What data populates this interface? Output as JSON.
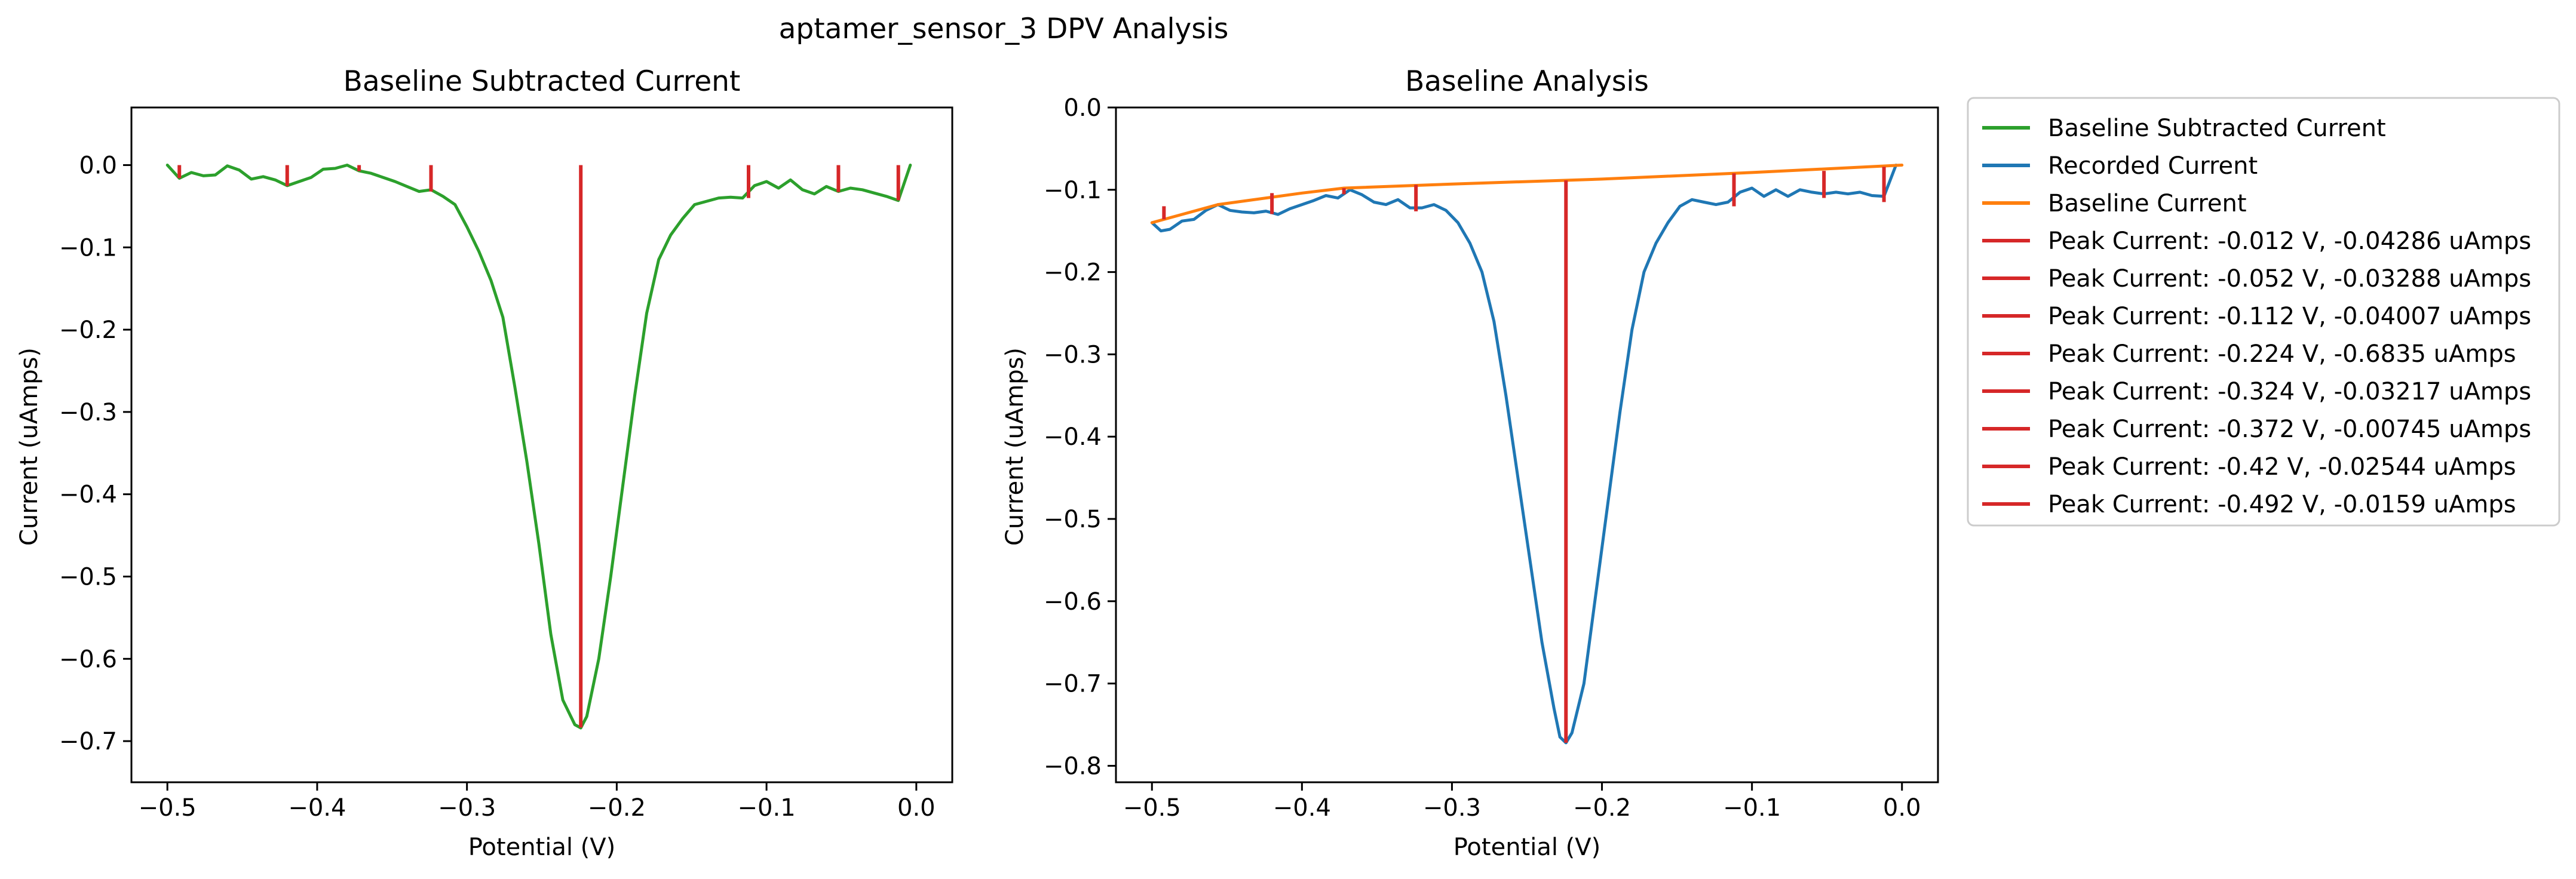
{
  "figure": {
    "title": "aptamer_sensor_3 DPV Analysis"
  },
  "chart_data": [
    {
      "type": "line",
      "title": "Baseline Subtracted Current",
      "xlabel": "Potential (V)",
      "ylabel": "Current (uAmps)",
      "xlim": [
        -0.524,
        0.024
      ],
      "ylim": [
        -0.75,
        0.07
      ],
      "xticks": [
        -0.5,
        -0.4,
        -0.3,
        -0.2,
        -0.1,
        0.0
      ],
      "xtick_labels": [
        "−0.5",
        "−0.4",
        "−0.3",
        "−0.2",
        "−0.1",
        "0.0"
      ],
      "yticks": [
        0.0,
        -0.1,
        -0.2,
        -0.3,
        -0.4,
        -0.5,
        -0.6,
        -0.7
      ],
      "ytick_labels": [
        "0.0",
        "−0.1",
        "−0.2",
        "−0.3",
        "−0.4",
        "−0.5",
        "−0.6",
        "−0.7"
      ],
      "series": [
        {
          "name": "Baseline Subtracted Current",
          "color": "#2ca02c",
          "x": [
            -0.5,
            -0.492,
            -0.484,
            -0.476,
            -0.468,
            -0.46,
            -0.452,
            -0.444,
            -0.436,
            -0.428,
            -0.42,
            -0.412,
            -0.404,
            -0.396,
            -0.388,
            -0.38,
            -0.372,
            -0.364,
            -0.356,
            -0.348,
            -0.34,
            -0.332,
            -0.324,
            -0.316,
            -0.308,
            -0.3,
            -0.292,
            -0.284,
            -0.276,
            -0.268,
            -0.26,
            -0.252,
            -0.244,
            -0.236,
            -0.228,
            -0.224,
            -0.22,
            -0.212,
            -0.204,
            -0.196,
            -0.188,
            -0.18,
            -0.172,
            -0.164,
            -0.156,
            -0.148,
            -0.14,
            -0.132,
            -0.124,
            -0.116,
            -0.108,
            -0.1,
            -0.092,
            -0.084,
            -0.076,
            -0.068,
            -0.06,
            -0.052,
            -0.044,
            -0.036,
            -0.028,
            -0.02,
            -0.012,
            -0.004
          ],
          "y": [
            0.0,
            -0.016,
            -0.009,
            -0.013,
            -0.012,
            -0.001,
            -0.006,
            -0.017,
            -0.014,
            -0.018,
            -0.025,
            -0.02,
            -0.015,
            -0.005,
            -0.004,
            0.0,
            -0.007,
            -0.01,
            -0.015,
            -0.02,
            -0.026,
            -0.032,
            -0.03,
            -0.038,
            -0.048,
            -0.075,
            -0.105,
            -0.14,
            -0.185,
            -0.27,
            -0.36,
            -0.46,
            -0.57,
            -0.65,
            -0.68,
            -0.684,
            -0.67,
            -0.6,
            -0.5,
            -0.39,
            -0.28,
            -0.18,
            -0.115,
            -0.085,
            -0.065,
            -0.048,
            -0.044,
            -0.04,
            -0.039,
            -0.04,
            -0.025,
            -0.02,
            -0.028,
            -0.018,
            -0.03,
            -0.035,
            -0.026,
            -0.032,
            -0.028,
            -0.03,
            -0.034,
            -0.038,
            -0.043,
            0.0
          ]
        }
      ],
      "peaks": [
        {
          "x": -0.492,
          "y": -0.0159
        },
        {
          "x": -0.42,
          "y": -0.02544
        },
        {
          "x": -0.372,
          "y": -0.00745
        },
        {
          "x": -0.324,
          "y": -0.03217
        },
        {
          "x": -0.224,
          "y": -0.6835
        },
        {
          "x": -0.112,
          "y": -0.04007
        },
        {
          "x": -0.052,
          "y": -0.03288
        },
        {
          "x": -0.012,
          "y": -0.04286
        }
      ],
      "peak_color": "#d62728"
    },
    {
      "type": "line",
      "title": "Baseline Analysis",
      "xlabel": "Potential (V)",
      "ylabel": "Current (uAmps)",
      "xlim": [
        -0.524,
        0.024
      ],
      "ylim": [
        -0.82,
        0.0
      ],
      "xticks": [
        -0.5,
        -0.4,
        -0.3,
        -0.2,
        -0.1,
        0.0
      ],
      "xtick_labels": [
        "−0.5",
        "−0.4",
        "−0.3",
        "−0.2",
        "−0.1",
        "0.0"
      ],
      "yticks": [
        0.0,
        -0.1,
        -0.2,
        -0.3,
        -0.4,
        -0.5,
        -0.6,
        -0.7,
        -0.8
      ],
      "ytick_labels": [
        "0.0",
        "−0.1",
        "−0.2",
        "−0.3",
        "−0.4",
        "−0.5",
        "−0.6",
        "−0.7",
        "−0.8"
      ],
      "series": [
        {
          "name": "Recorded Current",
          "color": "#1f77b4",
          "x": [
            -0.5,
            -0.494,
            -0.488,
            -0.48,
            -0.472,
            -0.464,
            -0.456,
            -0.448,
            -0.44,
            -0.432,
            -0.424,
            -0.416,
            -0.408,
            -0.4,
            -0.392,
            -0.384,
            -0.376,
            -0.368,
            -0.36,
            -0.352,
            -0.344,
            -0.336,
            -0.328,
            -0.32,
            -0.312,
            -0.304,
            -0.296,
            -0.288,
            -0.28,
            -0.272,
            -0.264,
            -0.256,
            -0.248,
            -0.24,
            -0.232,
            -0.228,
            -0.224,
            -0.22,
            -0.212,
            -0.204,
            -0.196,
            -0.188,
            -0.18,
            -0.172,
            -0.164,
            -0.156,
            -0.148,
            -0.14,
            -0.132,
            -0.124,
            -0.116,
            -0.108,
            -0.1,
            -0.092,
            -0.084,
            -0.076,
            -0.068,
            -0.06,
            -0.052,
            -0.044,
            -0.036,
            -0.028,
            -0.02,
            -0.012,
            -0.004
          ],
          "y": [
            -0.14,
            -0.15,
            -0.148,
            -0.138,
            -0.136,
            -0.125,
            -0.118,
            -0.125,
            -0.127,
            -0.128,
            -0.126,
            -0.13,
            -0.123,
            -0.118,
            -0.113,
            -0.107,
            -0.11,
            -0.1,
            -0.106,
            -0.115,
            -0.118,
            -0.112,
            -0.122,
            -0.122,
            -0.118,
            -0.125,
            -0.14,
            -0.165,
            -0.2,
            -0.26,
            -0.35,
            -0.45,
            -0.55,
            -0.65,
            -0.73,
            -0.765,
            -0.772,
            -0.76,
            -0.7,
            -0.59,
            -0.48,
            -0.37,
            -0.27,
            -0.2,
            -0.165,
            -0.14,
            -0.12,
            -0.112,
            -0.115,
            -0.118,
            -0.115,
            -0.103,
            -0.098,
            -0.108,
            -0.1,
            -0.108,
            -0.1,
            -0.103,
            -0.105,
            -0.103,
            -0.105,
            -0.103,
            -0.107,
            -0.108,
            -0.07
          ]
        },
        {
          "name": "Baseline Current",
          "color": "#ff7f0e",
          "x": [
            -0.5,
            -0.456,
            -0.4,
            -0.372,
            -0.3,
            -0.2,
            -0.1,
            0.0
          ],
          "y": [
            -0.14,
            -0.118,
            -0.104,
            -0.098,
            -0.093,
            -0.087,
            -0.079,
            -0.07
          ]
        }
      ],
      "peaks": [
        {
          "x": -0.492,
          "y1": -0.1359,
          "y2": -0.12
        },
        {
          "x": -0.42,
          "y1": -0.1295,
          "y2": -0.104
        },
        {
          "x": -0.372,
          "y1": -0.1055,
          "y2": -0.098
        },
        {
          "x": -0.324,
          "y1": -0.1262,
          "y2": -0.094
        },
        {
          "x": -0.224,
          "y1": -0.772,
          "y2": -0.0885
        },
        {
          "x": -0.112,
          "y1": -0.1201,
          "y2": -0.08
        },
        {
          "x": -0.052,
          "y1": -0.1099,
          "y2": -0.077
        },
        {
          "x": -0.012,
          "y1": -0.1149,
          "y2": -0.072
        }
      ],
      "peak_color": "#d62728"
    }
  ],
  "legend": {
    "position": "outside-right",
    "entries": [
      {
        "label": "Baseline Subtracted Current",
        "color": "#2ca02c"
      },
      {
        "label": "Recorded Current",
        "color": "#1f77b4"
      },
      {
        "label": "Baseline Current",
        "color": "#ff7f0e"
      },
      {
        "label": "Peak Current: -0.012 V, -0.04286 uAmps",
        "color": "#d62728"
      },
      {
        "label": "Peak Current: -0.052 V, -0.03288 uAmps",
        "color": "#d62728"
      },
      {
        "label": "Peak Current: -0.112 V, -0.04007 uAmps",
        "color": "#d62728"
      },
      {
        "label": "Peak Current: -0.224 V, -0.6835 uAmps",
        "color": "#d62728"
      },
      {
        "label": "Peak Current: -0.324 V, -0.03217 uAmps",
        "color": "#d62728"
      },
      {
        "label": "Peak Current: -0.372 V, -0.00745 uAmps",
        "color": "#d62728"
      },
      {
        "label": "Peak Current: -0.42 V, -0.02544 uAmps",
        "color": "#d62728"
      },
      {
        "label": "Peak Current: -0.492 V, -0.0159 uAmps",
        "color": "#d62728"
      }
    ]
  }
}
